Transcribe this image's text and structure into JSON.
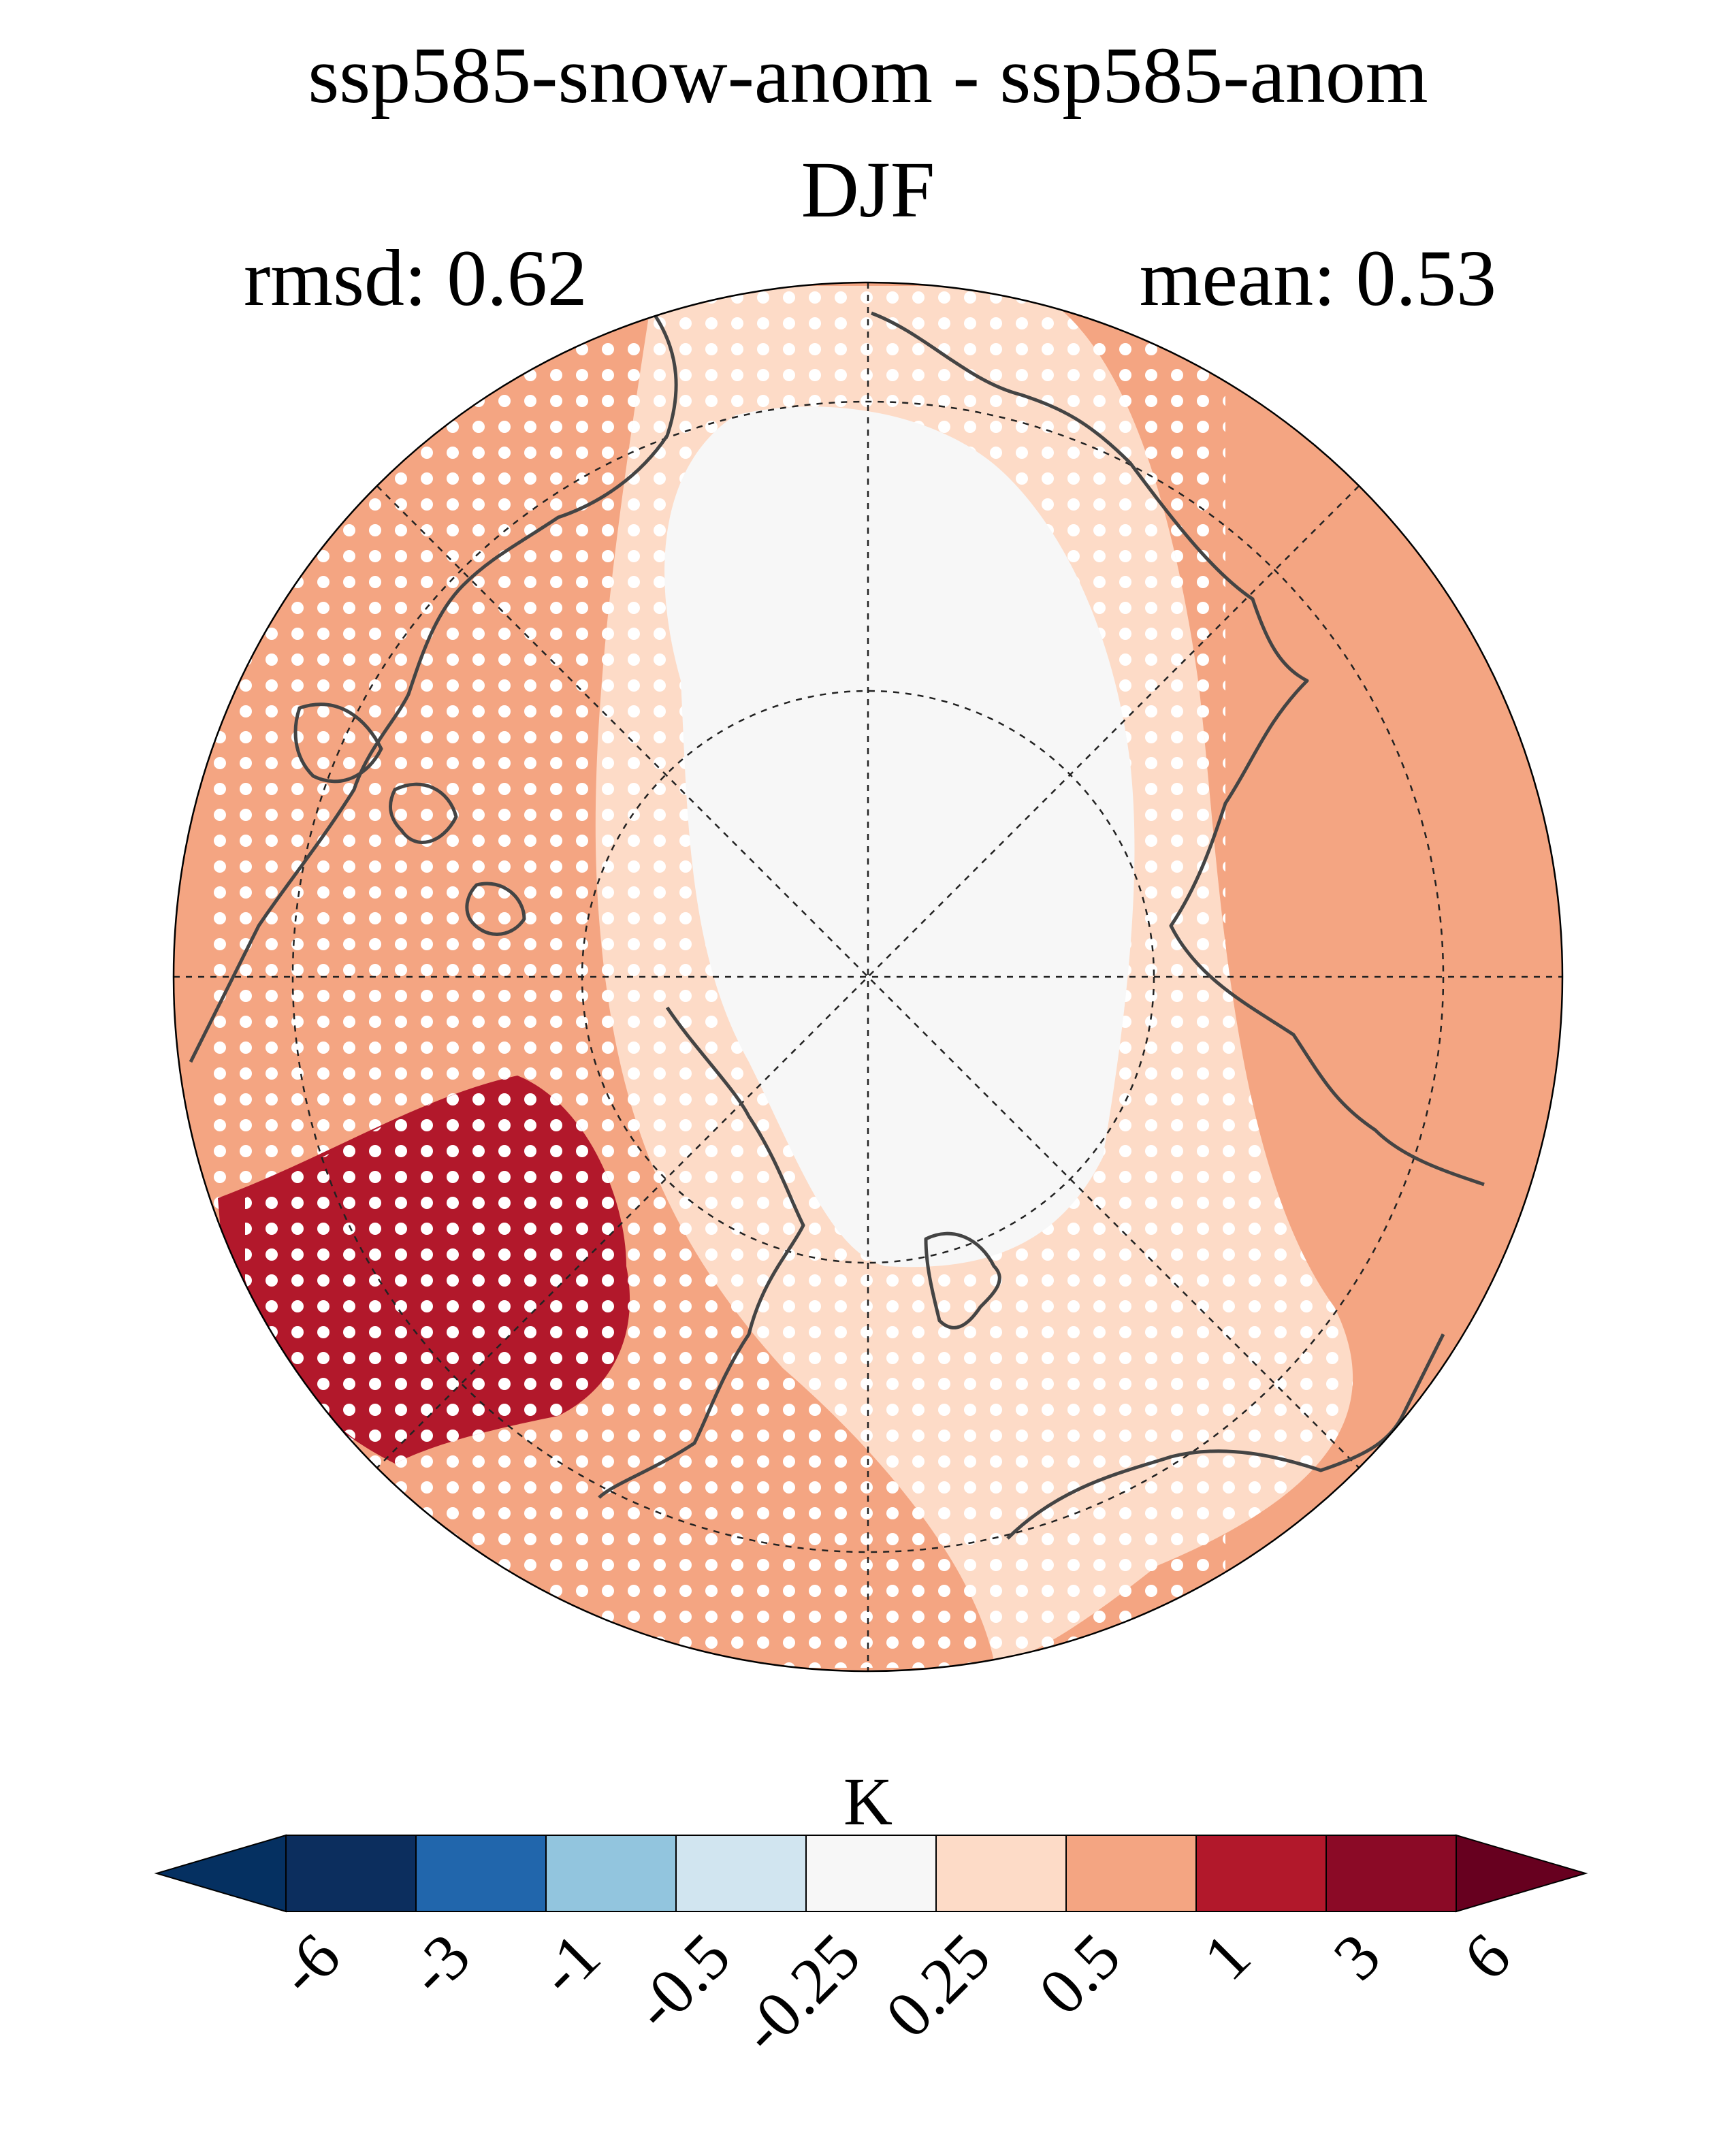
{
  "chart_data": {
    "type": "heatmap",
    "projection": "north-polar-stereographic",
    "title": "ssp585-snow-anom - ssp585-anom",
    "subtitle": "DJF",
    "annotations": {
      "left": "rmsd: 0.62",
      "right": "mean: 0.53"
    },
    "stats": {
      "rmsd": 0.62,
      "mean": 0.53
    },
    "colorbar": {
      "label": "K",
      "orientation": "horizontal",
      "extend": "both",
      "ticks": [
        "-6",
        "-3",
        "-1",
        "-0.5",
        "-0.25",
        "0.25",
        "0.5",
        "1",
        "3",
        "6"
      ],
      "tick_values": [
        -6,
        -3,
        -1,
        -0.5,
        -0.25,
        0.25,
        0.5,
        1,
        3,
        6
      ],
      "colors": [
        "#053061",
        "#0c2e5e",
        "#2166ac",
        "#92c5de",
        "#d1e5f0",
        "#f7f7f7",
        "#fddbc7",
        "#f4a582",
        "#b2182b",
        "#8b0a26",
        "#67001f"
      ]
    },
    "regions": [
      {
        "name": "outer-ring",
        "range": "0.5 to 1",
        "color": "#f4a582",
        "stippled": true
      },
      {
        "name": "arctic-ocean-band",
        "range": "0.25 to 0.5",
        "color": "#fddbc7",
        "stippled": true
      },
      {
        "name": "central-arctic",
        "range": "-0.25 to 0.25",
        "color": "#f7f7f7",
        "stippled": false
      },
      {
        "name": "western-canada-alaska",
        "range": "1 to 3",
        "color": "#b2182b",
        "stippled": true
      }
    ],
    "grid": true,
    "coastlines": true
  }
}
